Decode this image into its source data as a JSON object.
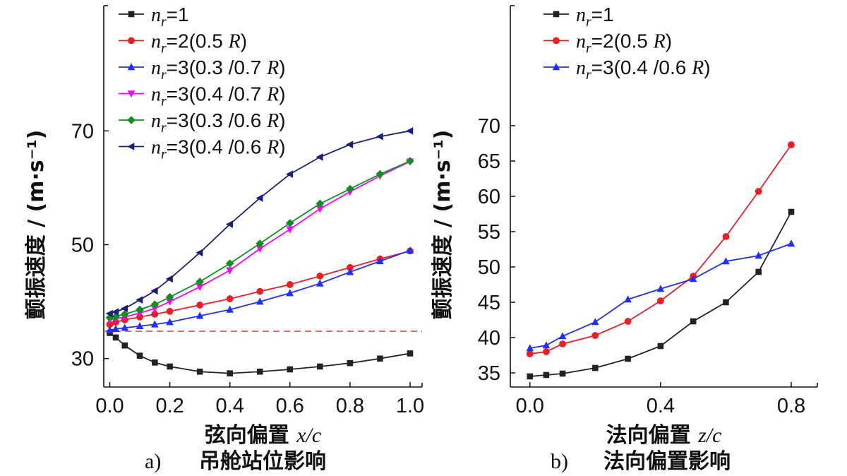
{
  "figure": {
    "panel_a_caption_letter": "a)",
    "panel_a_caption_text": "吊舱站位影响",
    "panel_b_caption_letter": "b)",
    "panel_b_caption_text": "法向偏置影响"
  },
  "chart_data": [
    {
      "type": "line",
      "panel": "a",
      "xlabel_cn": "弦向偏置",
      "xlabel_var": "x/c",
      "ylabel": "颤振速度 / (m·s⁻¹)",
      "xlim": [
        -0.02,
        1.04
      ],
      "ylim": [
        25,
        92
      ],
      "xticks": [
        0.0,
        0.2,
        0.4,
        0.6,
        0.8,
        1.0
      ],
      "xtick_labels": [
        "0.0",
        "0.2",
        "0.4",
        "0.6",
        "0.8",
        "1.0"
      ],
      "yticks": [
        30,
        50,
        70
      ],
      "ytick_labels": [
        "30",
        "50",
        "70"
      ],
      "reference_line": {
        "y": 34.8,
        "color": "#f36a6a",
        "style": "dashed"
      },
      "legend_position": "top-left",
      "series": [
        {
          "name": "n_r=1",
          "color": "#222222",
          "marker": "square",
          "x": [
            0.0,
            0.02,
            0.05,
            0.1,
            0.15,
            0.2,
            0.3,
            0.4,
            0.5,
            0.6,
            0.7,
            0.8,
            0.9,
            1.0
          ],
          "y": [
            34.5,
            33.7,
            32.3,
            30.5,
            29.3,
            28.6,
            27.7,
            27.4,
            27.7,
            28.1,
            28.6,
            29.2,
            30.0,
            30.9
          ]
        },
        {
          "name": "n_r=2 (0.5 R)",
          "color": "#ee1c25",
          "marker": "circle",
          "x": [
            0.0,
            0.02,
            0.05,
            0.1,
            0.15,
            0.2,
            0.3,
            0.4,
            0.5,
            0.6,
            0.7,
            0.8,
            0.9,
            1.0
          ],
          "y": [
            36.0,
            36.4,
            36.8,
            37.3,
            37.8,
            38.3,
            39.4,
            40.5,
            41.8,
            43.0,
            44.5,
            46.0,
            47.5,
            48.9
          ]
        },
        {
          "name": "n_r=3 (0.3 /0.7 R)",
          "color": "#1f2fff",
          "marker": "triangle-up",
          "x": [
            0.0,
            0.02,
            0.05,
            0.1,
            0.15,
            0.2,
            0.3,
            0.4,
            0.5,
            0.6,
            0.7,
            0.8,
            0.9,
            1.0
          ],
          "y": [
            35.0,
            35.2,
            35.4,
            35.7,
            36.0,
            36.4,
            37.5,
            38.6,
            40.0,
            41.5,
            43.2,
            45.2,
            47.1,
            49.0
          ]
        },
        {
          "name": "n_r=3 (0.4 /0.7 R)",
          "color": "#ff00ff",
          "marker": "triangle-down",
          "x": [
            0.0,
            0.02,
            0.05,
            0.1,
            0.15,
            0.2,
            0.3,
            0.4,
            0.5,
            0.6,
            0.7,
            0.8,
            0.9,
            1.0
          ],
          "y": [
            36.8,
            37.0,
            37.3,
            38.0,
            38.8,
            40.0,
            42.6,
            45.5,
            49.3,
            52.7,
            56.3,
            59.3,
            62.1,
            64.6
          ]
        },
        {
          "name": "n_r=3 (0.3 /0.6 R)",
          "color": "#0f8f1f",
          "marker": "diamond",
          "x": [
            0.0,
            0.02,
            0.05,
            0.1,
            0.15,
            0.2,
            0.3,
            0.4,
            0.5,
            0.6,
            0.7,
            0.8,
            0.9,
            1.0
          ],
          "y": [
            37.2,
            37.4,
            37.8,
            38.6,
            39.5,
            40.8,
            43.5,
            46.7,
            50.2,
            53.8,
            57.2,
            59.8,
            62.4,
            64.7
          ]
        },
        {
          "name": "n_r=3 (0.4 /0.6 R)",
          "color": "#1b1f7a",
          "marker": "triangle-left",
          "x": [
            0.0,
            0.02,
            0.05,
            0.1,
            0.15,
            0.2,
            0.3,
            0.4,
            0.5,
            0.6,
            0.7,
            0.8,
            0.9,
            1.0
          ],
          "y": [
            37.9,
            38.2,
            38.8,
            40.3,
            41.9,
            44.0,
            48.6,
            53.6,
            58.2,
            62.4,
            65.4,
            67.6,
            69.0,
            70.0
          ]
        }
      ]
    },
    {
      "type": "line",
      "panel": "b",
      "xlabel_cn": "法向偏置",
      "xlabel_var": "z/c",
      "ylabel": "颤振速度 / (m·s⁻¹)",
      "xlim": [
        -0.06,
        0.88
      ],
      "ylim": [
        33,
        87
      ],
      "xticks": [
        0.0,
        0.4,
        0.8
      ],
      "xtick_labels": [
        "0.0",
        "0.4",
        "0.8"
      ],
      "yticks": [
        35,
        40,
        45,
        50,
        55,
        60,
        65,
        70
      ],
      "ytick_labels": [
        "35",
        "40",
        "45",
        "50",
        "55",
        "60",
        "65",
        "70"
      ],
      "legend_position": "top-left",
      "series": [
        {
          "name": "n_r=1",
          "color": "#222222",
          "marker": "square",
          "x": [
            0.0,
            0.05,
            0.1,
            0.2,
            0.3,
            0.4,
            0.5,
            0.6,
            0.7,
            0.8
          ],
          "y": [
            34.5,
            34.7,
            34.9,
            35.7,
            37.0,
            38.8,
            42.3,
            45.0,
            49.3,
            57.8
          ]
        },
        {
          "name": "n_r=2 (0.5 R)",
          "color": "#ee1c25",
          "marker": "circle",
          "x": [
            0.0,
            0.05,
            0.1,
            0.2,
            0.3,
            0.4,
            0.5,
            0.6,
            0.7,
            0.8
          ],
          "y": [
            37.7,
            38.0,
            39.1,
            40.3,
            42.3,
            45.2,
            48.7,
            54.3,
            60.7,
            67.3
          ]
        },
        {
          "name": "n_r=3 (0.4 /0.6 R)",
          "color": "#1f2fff",
          "marker": "triangle-up",
          "x": [
            0.0,
            0.05,
            0.1,
            0.2,
            0.3,
            0.4,
            0.5,
            0.6,
            0.7,
            0.8
          ],
          "y": [
            38.5,
            38.9,
            40.2,
            42.2,
            45.4,
            46.9,
            48.3,
            50.8,
            51.6,
            53.3
          ]
        }
      ]
    }
  ]
}
